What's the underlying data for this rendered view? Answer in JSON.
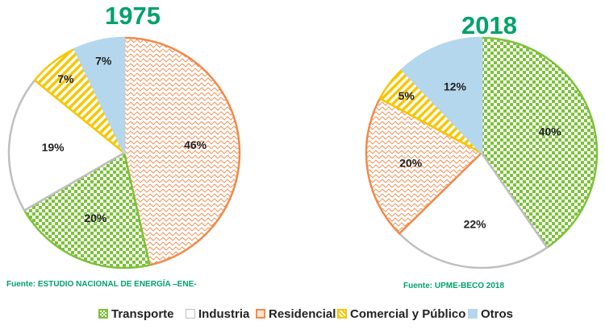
{
  "chart_data": [
    {
      "type": "pie",
      "title": "1975",
      "categories": [
        "Transporte",
        "Industria",
        "Residencial",
        "Comercial y Público",
        "Otros"
      ],
      "values": [
        20,
        19,
        46,
        7,
        7
      ],
      "labels": [
        "20%",
        "19%",
        "46%",
        "7%",
        "7%"
      ],
      "source": "Fuente: ESTUDIO NACIONAL DE ENERGÍA –ENE-"
    },
    {
      "type": "pie",
      "title": "2018",
      "categories": [
        "Transporte",
        "Industria",
        "Residencial",
        "Comercial y Público",
        "Otros"
      ],
      "values": [
        40,
        22,
        20,
        5,
        12
      ],
      "labels": [
        "40%",
        "22%",
        "20%",
        "5%",
        "12%"
      ],
      "source": "Fuente: UPME-BECO 2018"
    }
  ],
  "legend": {
    "placement": "bottom",
    "items": [
      {
        "label": "Transporte",
        "color": "#8dc63f"
      },
      {
        "label": "Industria",
        "color": "#bfbfbf"
      },
      {
        "label": "Residencial",
        "color": "#f08a4b"
      },
      {
        "label": "Comercial y Público",
        "color": "#f7c600"
      },
      {
        "label": "Otros",
        "color": "#b4d7ee"
      }
    ]
  },
  "colors": {
    "title": "#00a26b",
    "source": "#00a26b"
  }
}
